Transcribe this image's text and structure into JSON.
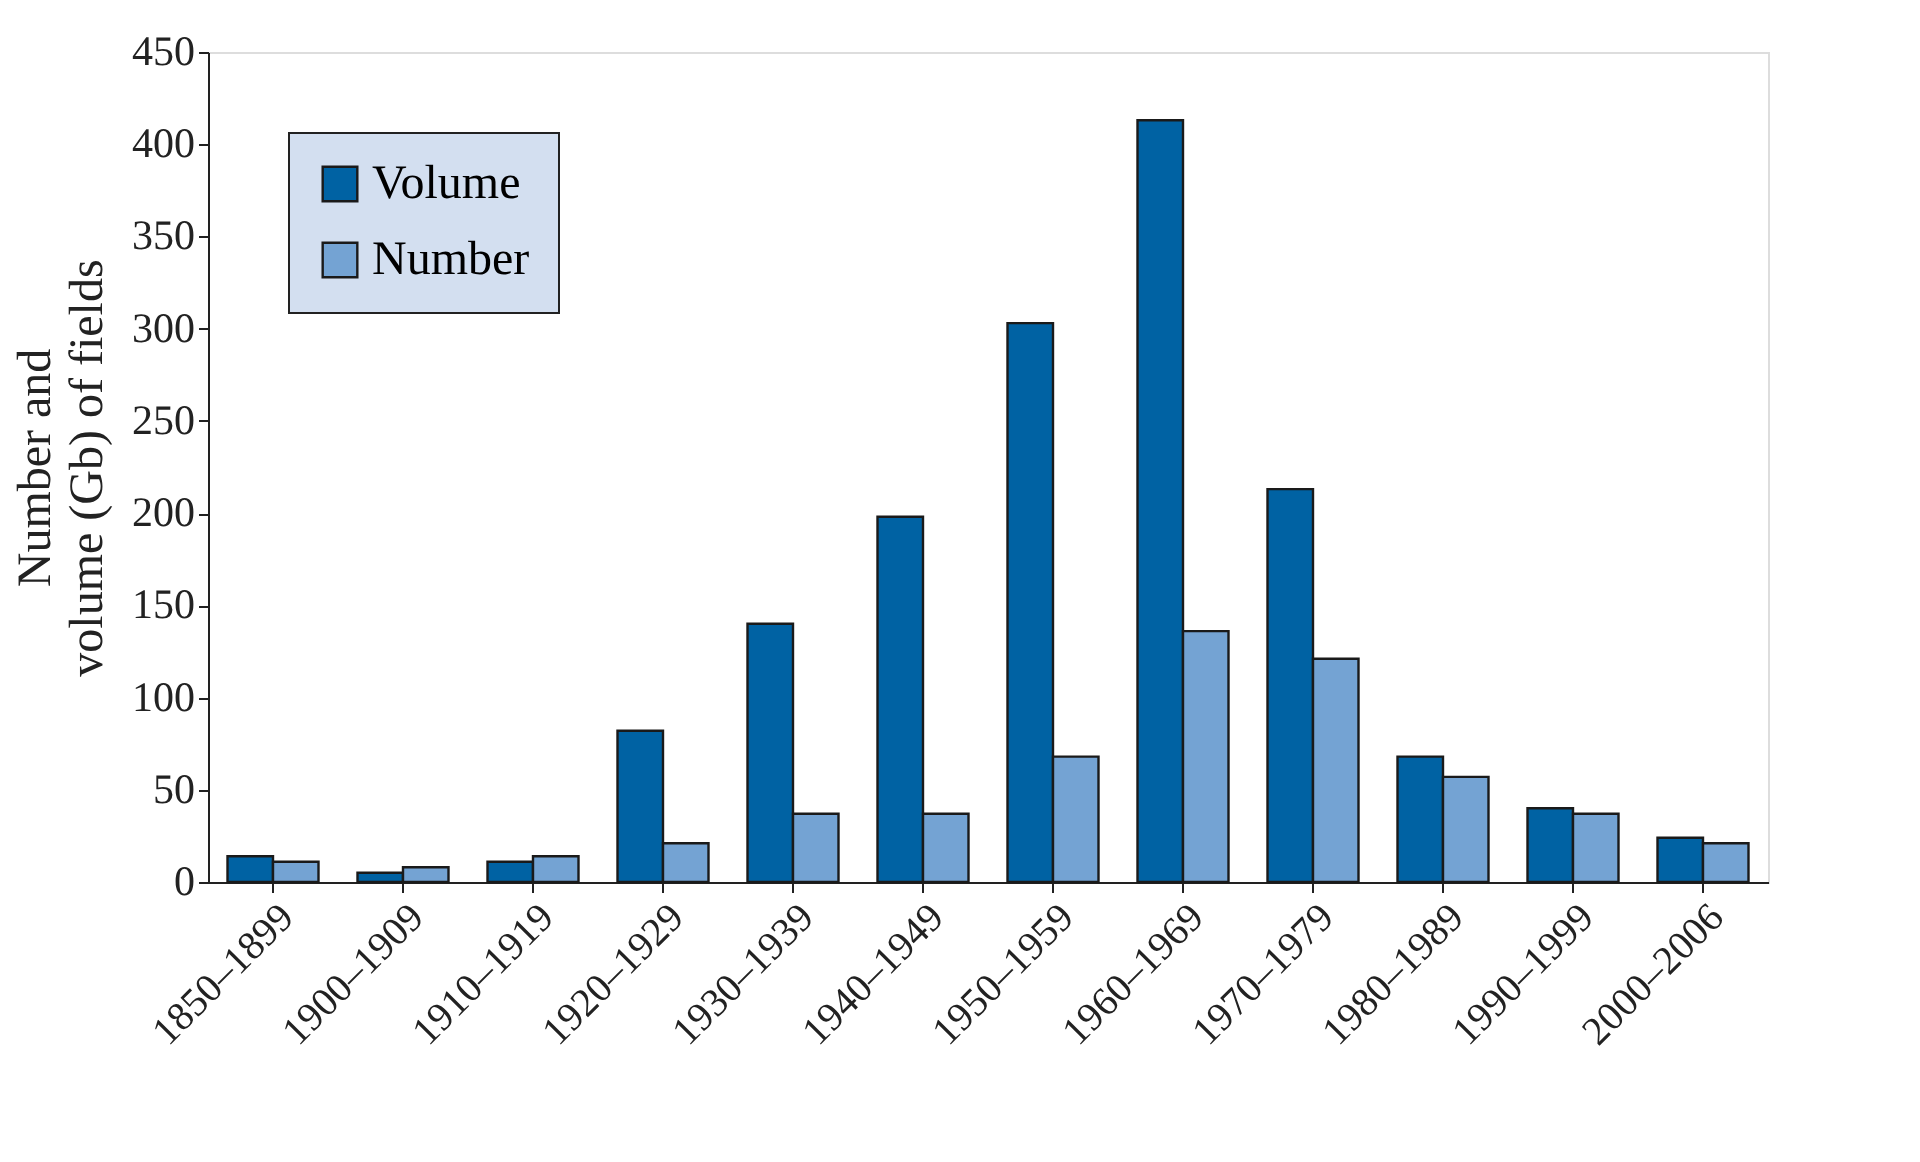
{
  "chart_data": {
    "type": "bar",
    "ylabel": "Number and\nvolume (Gb) of fields",
    "categories": [
      "1850–1899",
      "1900–1909",
      "1910–1919",
      "1920–1929",
      "1930–1939",
      "1940–1949",
      "1950–1959",
      "1960–1969",
      "1970–1979",
      "1980–1989",
      "1990–1999",
      "2000–2006"
    ],
    "series": [
      {
        "name": "Volume",
        "color": "#0062a3",
        "values": [
          14,
          5,
          11,
          82,
          140,
          198,
          303,
          413,
          213,
          68,
          40,
          24
        ]
      },
      {
        "name": "Number",
        "color": "#74a3d3",
        "values": [
          11,
          8,
          14,
          21,
          37,
          37,
          68,
          136,
          121,
          57,
          37,
          21
        ]
      }
    ],
    "ylim": [
      0,
      450
    ],
    "yticks": [
      0,
      50,
      100,
      150,
      200,
      250,
      300,
      350,
      400,
      450
    ],
    "grid": false,
    "legend": "top left"
  }
}
